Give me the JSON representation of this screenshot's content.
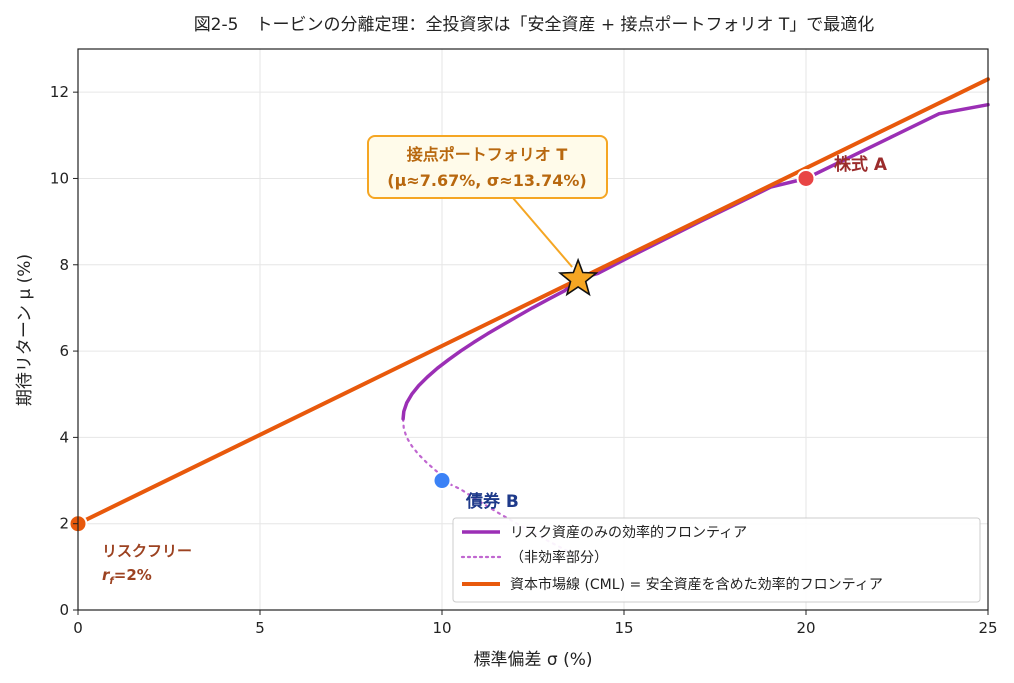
{
  "chart_data": {
    "type": "line",
    "title": "図2-5　トービンの分離定理：全投資家は「安全資産 + 接点ポートフォリオ T」で最適化",
    "xlabel": "標準偏差 σ (%)",
    "ylabel": "期待リターン μ (%)",
    "xlim": [
      0,
      25
    ],
    "ylim": [
      0,
      13
    ],
    "xticks": [
      "0",
      "5",
      "10",
      "15",
      "20",
      "25"
    ],
    "yticks": [
      "0",
      "2",
      "4",
      "6",
      "8",
      "10",
      "12"
    ],
    "grid": true,
    "legend_position": "lower-right",
    "colors": {
      "frontier": "#9b2fb5",
      "inefficient": "#c066d0",
      "cml": "#e8590c",
      "tangent": "#f5a623",
      "stock": "#e84545",
      "bond": "#3b82f6",
      "riskfree": "#e8590c",
      "stock_label": "#9b2c2c",
      "bond_label": "#1e3a8a",
      "riskfree_label": "#9c4221"
    },
    "series": [
      {
        "name": "リスク資産のみの効率的フロンティア",
        "style": "solid",
        "points": [
          [
            8.93,
            4.43
          ],
          [
            8.95,
            4.6
          ],
          [
            9.03,
            4.8
          ],
          [
            9.17,
            5.0
          ],
          [
            9.36,
            5.2
          ],
          [
            9.6,
            5.4
          ],
          [
            9.87,
            5.6
          ],
          [
            10.18,
            5.8
          ],
          [
            10.51,
            6.0
          ],
          [
            10.87,
            6.2
          ],
          [
            11.25,
            6.4
          ],
          [
            11.65,
            6.6
          ],
          [
            12.06,
            6.8
          ],
          [
            12.48,
            7.0
          ],
          [
            12.92,
            7.2
          ],
          [
            13.37,
            7.4
          ],
          [
            13.74,
            7.67
          ],
          [
            14.28,
            7.8
          ],
          [
            15.2,
            8.2
          ],
          [
            16.14,
            8.6
          ],
          [
            17.09,
            9.0
          ],
          [
            18.06,
            9.4
          ],
          [
            19.03,
            9.8
          ],
          [
            20.0,
            10.0
          ],
          [
            21.22,
            10.5
          ],
          [
            22.44,
            11.0
          ],
          [
            23.66,
            11.5
          ],
          [
            25.0,
            11.71
          ]
        ]
      },
      {
        "name": "（非効率部分）",
        "style": "dotted",
        "points": [
          [
            8.93,
            4.43
          ],
          [
            8.95,
            4.2
          ],
          [
            9.03,
            4.0
          ],
          [
            9.17,
            3.8
          ],
          [
            9.36,
            3.6
          ],
          [
            9.6,
            3.4
          ],
          [
            9.87,
            3.2
          ],
          [
            10.0,
            3.0
          ],
          [
            10.51,
            2.8
          ],
          [
            10.87,
            2.6
          ],
          [
            11.25,
            2.4
          ],
          [
            11.65,
            2.2
          ],
          [
            12.06,
            2.0
          ],
          [
            12.48,
            1.8
          ],
          [
            12.92,
            1.6
          ],
          [
            13.37,
            1.4
          ],
          [
            13.8,
            1.2
          ]
        ]
      },
      {
        "name": "資本市場線 (CML) = 安全資産を含めた効率的フロンティア",
        "style": "solid",
        "points": [
          [
            0,
            2.0
          ],
          [
            25,
            12.3
          ]
        ]
      }
    ],
    "points": [
      {
        "label": "株式 A",
        "x": 20,
        "y": 10
      },
      {
        "label": "債券 B",
        "x": 10,
        "y": 3
      },
      {
        "label": "リスクフリー",
        "label2": "r_f=2%",
        "x": 0,
        "y": 2
      },
      {
        "label": "接点ポートフォリオ T",
        "x": 13.74,
        "y": 7.67
      }
    ],
    "annotation": {
      "line1": "接点ポートフォリオ T",
      "line2": "(μ≈7.67%, σ≈13.74%)",
      "box_center_data": [
        11.5,
        10.3
      ]
    },
    "riskfree_label": {
      "line1": "リスクフリー",
      "rf_main": "r",
      "rf_sub": "f",
      "rf_rest": "=2%"
    }
  }
}
